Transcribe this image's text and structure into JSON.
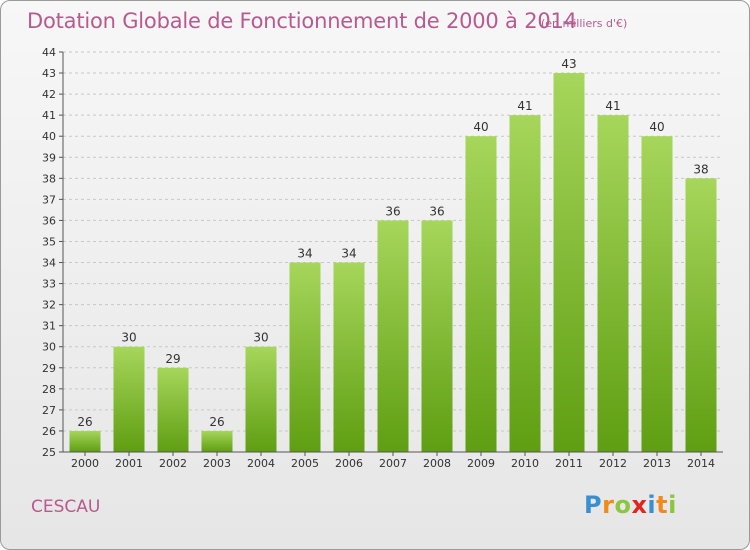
{
  "header": {
    "title": "Dotation Globale de Fonctionnement de 2000 à 2014",
    "subtitle": "(en milliers d'€)"
  },
  "footer": {
    "commune": "CESCAU",
    "logo_letters": [
      "P",
      "r",
      "o",
      "x",
      "i",
      "t",
      "i"
    ],
    "logo_colors": [
      "#3a8fd0",
      "#f08a1c",
      "#8cc63f",
      "#e2251f",
      "#3a8fd0",
      "#f08a1c",
      "#8cc63f"
    ]
  },
  "colors": {
    "bar_top": "#a6d65b",
    "bar_bottom": "#5f9e12",
    "grid": "#c8c8c8",
    "axis": "#555555"
  },
  "chart_data": {
    "type": "bar",
    "categories": [
      "2000",
      "2001",
      "2002",
      "2003",
      "2004",
      "2005",
      "2006",
      "2007",
      "2008",
      "2009",
      "2010",
      "2011",
      "2012",
      "2013",
      "2014"
    ],
    "values": [
      26,
      30,
      29,
      26,
      30,
      34,
      34,
      36,
      36,
      40,
      41,
      43,
      41,
      40,
      38
    ],
    "data_labels": [
      "26",
      "30",
      "29",
      "26",
      "30",
      "34",
      "34",
      "36",
      "36",
      "40",
      "41",
      "43",
      "41",
      "40",
      "38"
    ],
    "y_ticks": [
      "25",
      "26",
      "27",
      "28",
      "29",
      "30",
      "31",
      "32",
      "33",
      "34",
      "35",
      "36",
      "37",
      "38",
      "39",
      "40",
      "41",
      "42",
      "43",
      "44"
    ],
    "ylim": [
      25,
      44
    ],
    "grid": true,
    "legend": "none"
  }
}
